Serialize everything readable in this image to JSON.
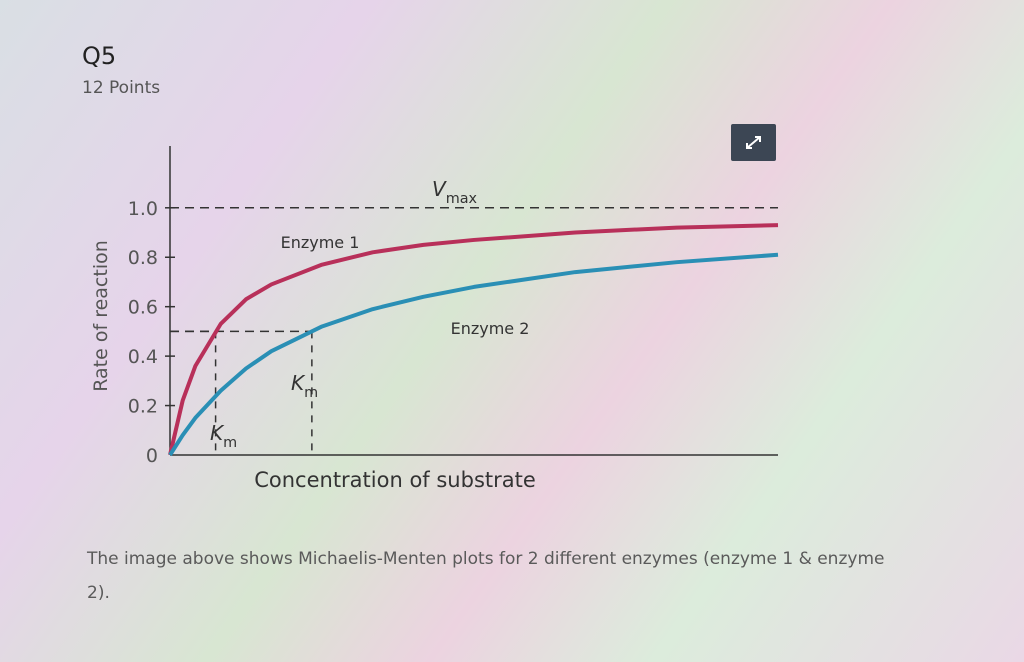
{
  "question": {
    "title": "Q5",
    "points": "12 Points"
  },
  "chart_data": {
    "type": "line",
    "ylabel": "Rate of reaction",
    "xlabel": "Concentration of substrate",
    "x": [
      0,
      0.25,
      0.5,
      1,
      1.5,
      2,
      3,
      4,
      5,
      6,
      8,
      10,
      12
    ],
    "series": [
      {
        "name": "Enzyme 1",
        "color": "#b8305a",
        "km": 0.9,
        "values": [
          0,
          0.22,
          0.36,
          0.53,
          0.63,
          0.69,
          0.77,
          0.82,
          0.85,
          0.87,
          0.9,
          0.92,
          0.93
        ]
      },
      {
        "name": "Enzyme 2",
        "color": "#2a8fb5",
        "km": 2.8,
        "values": [
          0,
          0.08,
          0.15,
          0.26,
          0.35,
          0.42,
          0.52,
          0.59,
          0.64,
          0.68,
          0.74,
          0.78,
          0.81
        ]
      }
    ],
    "xlim": [
      0,
      12
    ],
    "ylim": [
      0,
      1.25
    ],
    "yticks": [
      0,
      0.2,
      0.4,
      0.6,
      0.8,
      {
        "value": 1,
        "label": "1.0"
      }
    ],
    "vmax": 1,
    "vmax_label": {
      "main": "V",
      "sub": "max"
    },
    "km_rate": 0.5,
    "km_label": {
      "main": "K",
      "sub": "m"
    }
  },
  "description": "The image above shows Michaelis-Menten plots for 2 different enzymes (enzyme 1 & enzyme 2)."
}
